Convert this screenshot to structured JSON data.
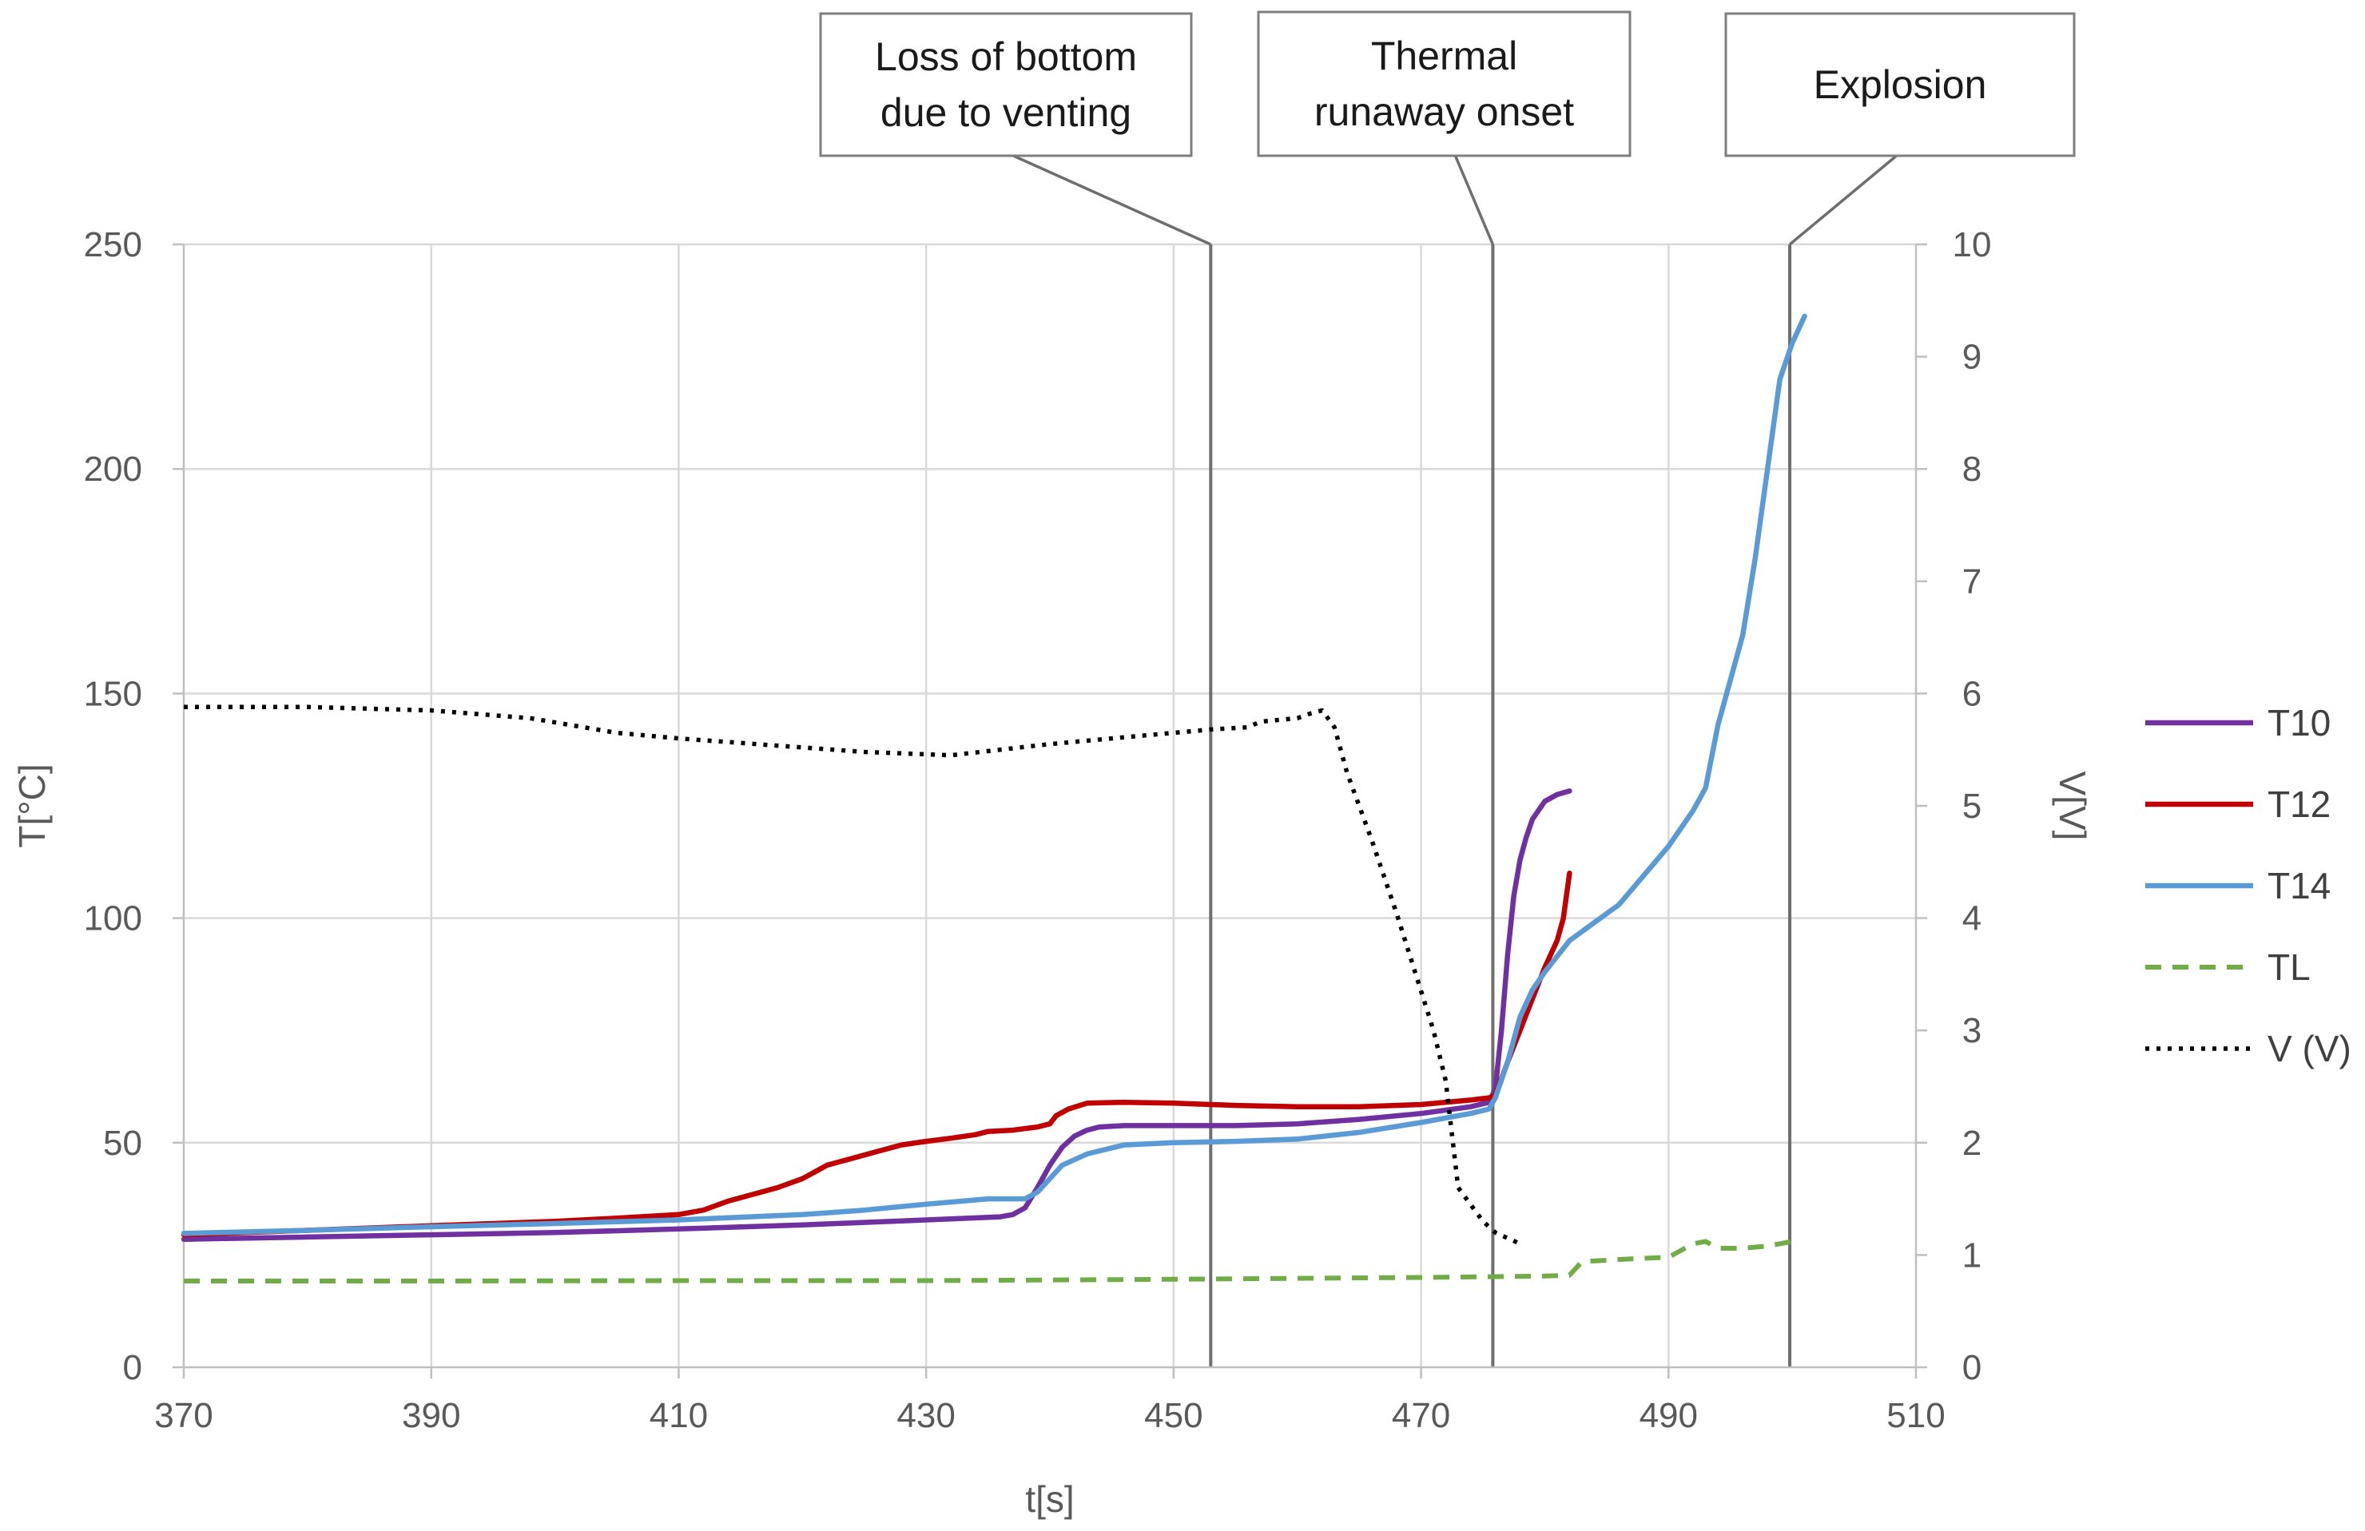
{
  "chart_data": {
    "type": "line",
    "xlabel": "t[s]",
    "ylabel": "T[°C]",
    "y2label": "V[V]",
    "xlim": [
      370,
      510
    ],
    "xticks": [
      370,
      390,
      410,
      430,
      450,
      470,
      490,
      510
    ],
    "ylim": [
      0,
      250
    ],
    "yticks": [
      0,
      50,
      100,
      150,
      200,
      250
    ],
    "y2lim": [
      0,
      10
    ],
    "y2ticks": [
      0,
      1,
      2,
      3,
      4,
      5,
      6,
      7,
      8,
      9,
      10
    ],
    "grid": true,
    "legend_position": "right",
    "annotations": [
      {
        "text": [
          "Loss of bottom",
          "due to venting"
        ],
        "x": 453
      },
      {
        "text": [
          "Thermal",
          "runaway onset"
        ],
        "x": 475.8
      },
      {
        "text": [
          "Explosion"
        ],
        "x": 499.8
      }
    ],
    "series": [
      {
        "name": "T10",
        "axis": "left",
        "color": "#7030A0",
        "style": "solid",
        "points": [
          [
            370,
            28.5
          ],
          [
            380,
            29
          ],
          [
            390,
            29.5
          ],
          [
            400,
            30
          ],
          [
            410,
            30.8
          ],
          [
            420,
            31.7
          ],
          [
            430,
            32.8
          ],
          [
            436,
            33.5
          ],
          [
            437,
            34
          ],
          [
            438,
            35.5
          ],
          [
            439,
            40
          ],
          [
            440,
            45
          ],
          [
            441,
            49
          ],
          [
            442,
            51.5
          ],
          [
            443,
            52.8
          ],
          [
            444,
            53.5
          ],
          [
            446,
            53.8
          ],
          [
            450,
            53.8
          ],
          [
            455,
            53.8
          ],
          [
            460,
            54.2
          ],
          [
            465,
            55.2
          ],
          [
            470,
            56.5
          ],
          [
            474,
            58
          ],
          [
            475.5,
            59
          ],
          [
            476,
            62
          ],
          [
            476.5,
            75
          ],
          [
            477,
            92
          ],
          [
            477.5,
            105
          ],
          [
            478,
            113
          ],
          [
            478.5,
            118
          ],
          [
            479,
            122
          ],
          [
            480,
            126
          ],
          [
            481,
            127.5
          ],
          [
            482,
            128.3
          ]
        ]
      },
      {
        "name": "T12",
        "axis": "left",
        "color": "#C00000",
        "style": "solid",
        "points": [
          [
            370,
            29.5
          ],
          [
            380,
            30.5
          ],
          [
            390,
            31.5
          ],
          [
            400,
            32.5
          ],
          [
            405,
            33.2
          ],
          [
            410,
            34
          ],
          [
            412,
            35
          ],
          [
            413,
            36
          ],
          [
            414,
            37
          ],
          [
            416,
            38.5
          ],
          [
            418,
            40
          ],
          [
            420,
            42
          ],
          [
            421,
            43.5
          ],
          [
            422,
            45
          ],
          [
            424,
            46.5
          ],
          [
            426,
            48
          ],
          [
            428,
            49.5
          ],
          [
            430,
            50.3
          ],
          [
            432,
            51
          ],
          [
            434,
            51.8
          ],
          [
            435,
            52.5
          ],
          [
            437,
            52.8
          ],
          [
            439,
            53.5
          ],
          [
            440,
            54.2
          ],
          [
            440.5,
            56
          ],
          [
            441.5,
            57.5
          ],
          [
            443,
            58.8
          ],
          [
            446,
            59
          ],
          [
            450,
            58.8
          ],
          [
            455,
            58.3
          ],
          [
            460,
            58
          ],
          [
            465,
            58
          ],
          [
            470,
            58.5
          ],
          [
            474,
            59.5
          ],
          [
            475.5,
            60
          ],
          [
            476,
            60.5
          ],
          [
            477,
            68
          ],
          [
            478,
            75
          ],
          [
            479,
            82
          ],
          [
            480,
            89
          ],
          [
            481,
            95
          ],
          [
            481.5,
            100
          ],
          [
            482,
            110
          ]
        ]
      },
      {
        "name": "T14",
        "axis": "left",
        "color": "#5B9BD5",
        "style": "solid",
        "points": [
          [
            370,
            29.8
          ],
          [
            380,
            30.5
          ],
          [
            390,
            31.3
          ],
          [
            400,
            32
          ],
          [
            410,
            32.8
          ],
          [
            420,
            34
          ],
          [
            425,
            35
          ],
          [
            430,
            36.3
          ],
          [
            435,
            37.5
          ],
          [
            438,
            37.5
          ],
          [
            439,
            39
          ],
          [
            440,
            42
          ],
          [
            441,
            45
          ],
          [
            443,
            47.5
          ],
          [
            446,
            49.5
          ],
          [
            450,
            50
          ],
          [
            455,
            50.3
          ],
          [
            460,
            50.8
          ],
          [
            465,
            52.3
          ],
          [
            470,
            54.5
          ],
          [
            474,
            56.5
          ],
          [
            475.5,
            57.5
          ],
          [
            476,
            60
          ],
          [
            477,
            68
          ],
          [
            478,
            78
          ],
          [
            479,
            84
          ],
          [
            480,
            88
          ],
          [
            482,
            95
          ],
          [
            486,
            103
          ],
          [
            490,
            116
          ],
          [
            492,
            124
          ],
          [
            493,
            129
          ],
          [
            494,
            143
          ],
          [
            496,
            163
          ],
          [
            497,
            180
          ],
          [
            498,
            200
          ],
          [
            499,
            220
          ],
          [
            500,
            228
          ],
          [
            501,
            234
          ]
        ]
      },
      {
        "name": "TL",
        "axis": "left",
        "color": "#70AD47",
        "style": "dashed",
        "points": [
          [
            370,
            19.2
          ],
          [
            390,
            19.2
          ],
          [
            410,
            19.3
          ],
          [
            430,
            19.3
          ],
          [
            450,
            19.6
          ],
          [
            460,
            19.8
          ],
          [
            470,
            20
          ],
          [
            480,
            20.3
          ],
          [
            482,
            20.5
          ],
          [
            483,
            23.5
          ],
          [
            486,
            24
          ],
          [
            490,
            24.5
          ],
          [
            492,
            27.5
          ],
          [
            493,
            28
          ],
          [
            494,
            26.5
          ],
          [
            496,
            26.5
          ],
          [
            498,
            27
          ],
          [
            500,
            28
          ]
        ]
      },
      {
        "name": "V (V)",
        "axis": "right",
        "color": "#000000",
        "style": "dotted",
        "points": [
          [
            370,
            5.88
          ],
          [
            380,
            5.88
          ],
          [
            390,
            5.85
          ],
          [
            398,
            5.78
          ],
          [
            405,
            5.65
          ],
          [
            410,
            5.6
          ],
          [
            420,
            5.52
          ],
          [
            425,
            5.48
          ],
          [
            432,
            5.45
          ],
          [
            436,
            5.5
          ],
          [
            440,
            5.55
          ],
          [
            445,
            5.6
          ],
          [
            450,
            5.65
          ],
          [
            453,
            5.68
          ],
          [
            456,
            5.7
          ],
          [
            457,
            5.75
          ],
          [
            460,
            5.78
          ],
          [
            461,
            5.82
          ],
          [
            462,
            5.85
          ],
          [
            463,
            5.7
          ],
          [
            464,
            5.3
          ],
          [
            466,
            4.7
          ],
          [
            468,
            4.05
          ],
          [
            470,
            3.35
          ],
          [
            471,
            3.0
          ],
          [
            472,
            2.55
          ],
          [
            473,
            1.6
          ],
          [
            474,
            1.45
          ],
          [
            475,
            1.3
          ],
          [
            476,
            1.2
          ],
          [
            478,
            1.1
          ]
        ]
      }
    ]
  }
}
